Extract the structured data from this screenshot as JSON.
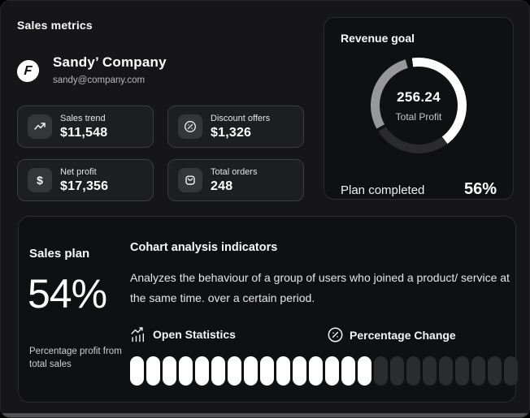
{
  "page": {
    "title": "Sales metrics"
  },
  "profile": {
    "name": "Sandy’ Company",
    "email": "sandy@company.com",
    "logo_glyph": "F"
  },
  "metrics": [
    {
      "icon": "trend-up-icon",
      "label": "Sales trend",
      "value": "$11,548"
    },
    {
      "icon": "discount-icon",
      "label": "Discount offers",
      "value": "$1,326"
    },
    {
      "icon": "dollar-icon",
      "label": "Net profit",
      "value": "$17,356"
    },
    {
      "icon": "bag-icon",
      "label": "Total orders",
      "value": "248"
    }
  ],
  "revenue_goal": {
    "title": "Revenue goal",
    "center_value": "256.24",
    "center_label": "Total Profit",
    "footer_label": "Plan completed",
    "footer_value": "56%",
    "ring": {
      "segments": [
        {
          "color": "#ffffff",
          "start": 0,
          "end": 151
        },
        {
          "color": "#2b2b2d",
          "start": 151,
          "end": 245
        },
        {
          "color": "#0f1012",
          "start": 245,
          "end": 249
        },
        {
          "color": "#98989a",
          "start": 249,
          "end": 352
        },
        {
          "color": "#0f1012",
          "start": 352,
          "end": 360
        }
      ],
      "from_deg": -8
    }
  },
  "sales_plan": {
    "title": "Sales plan",
    "value": "54%",
    "caption": "Percentage profit from total sales"
  },
  "cohort": {
    "title": "Cohart analysis indicators",
    "description": "Analyzes the behaviour of a group of users who joined a product/ service at the same time. over a certain period.",
    "features": [
      {
        "icon": "statistics-icon",
        "label": "Open Statistics"
      },
      {
        "icon": "percentage-icon",
        "label": "Percentage Change"
      }
    ],
    "progress": {
      "total_segments": 24,
      "filled_segments": 15
    }
  },
  "colors": {
    "background": "#161618",
    "panel": "#0f1012",
    "card": "#1d1e20",
    "accent": "#ffffff",
    "ring_gray": "#98989a",
    "ring_dark": "#2b2b2d",
    "pill_empty": "#2b2c2e"
  }
}
